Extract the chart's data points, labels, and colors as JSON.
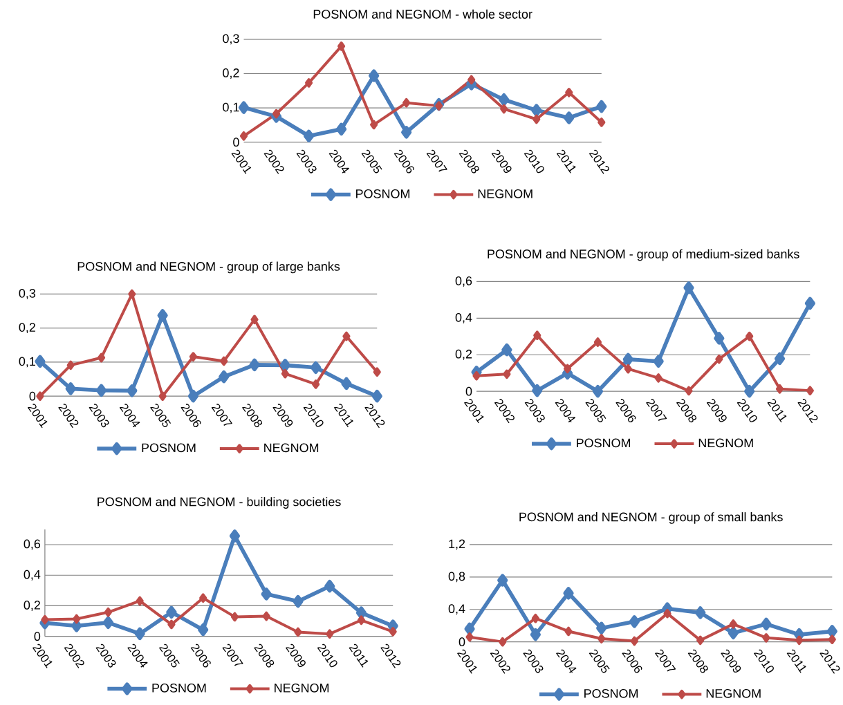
{
  "chart_data": [
    {
      "type": "line",
      "title": "POSNOM and NEGNOM - whole sector",
      "categories": [
        "2001",
        "2002",
        "2003",
        "2004",
        "2005",
        "2006",
        "2007",
        "2008",
        "2009",
        "2010",
        "2011",
        "2012"
      ],
      "ylim": [
        0,
        0.3
      ],
      "yticks": [
        0,
        {
          "value": 0.1,
          "label": "0,1"
        },
        {
          "value": 0.2,
          "label": "0,2"
        },
        {
          "value": 0.3,
          "label": "0,3"
        }
      ],
      "grid": "y",
      "legend": "bottom",
      "marker": "diamond",
      "series": [
        {
          "name": "POSNOM",
          "color": "#4a7ebb",
          "values": [
            0.101,
            0.075,
            0.018,
            0.038,
            0.194,
            0.029,
            0.11,
            0.17,
            0.124,
            0.093,
            0.071,
            0.104
          ]
        },
        {
          "name": "NEGNOM",
          "color": "#be4b48",
          "values": [
            0.018,
            0.083,
            0.173,
            0.28,
            0.051,
            0.115,
            0.106,
            0.182,
            0.097,
            0.067,
            0.145,
            0.058
          ]
        }
      ]
    },
    {
      "type": "line",
      "title": "POSNOM and NEGNOM - group of large banks",
      "categories": [
        "2001",
        "2002",
        "2003",
        "2004",
        "2005",
        "2006",
        "2007",
        "2008",
        "2009",
        "2010",
        "2011",
        "2012"
      ],
      "ylim": [
        0,
        0.3
      ],
      "yticks": [
        0,
        {
          "value": 0.1,
          "label": "0,1"
        },
        {
          "value": 0.2,
          "label": "0,2"
        },
        {
          "value": 0.3,
          "label": "0,3"
        }
      ],
      "grid": "y",
      "legend": "bottom",
      "marker": "diamond",
      "series": [
        {
          "name": "POSNOM",
          "color": "#4a7ebb",
          "values": [
            0.102,
            0.022,
            0.017,
            0.016,
            0.237,
            0,
            0.057,
            0.092,
            0.091,
            0.084,
            0.037,
            0
          ]
        },
        {
          "name": "NEGNOM",
          "color": "#be4b48",
          "values": [
            0,
            0.091,
            0.113,
            0.3,
            0,
            0.116,
            0.103,
            0.225,
            0.066,
            0.035,
            0.176,
            0.071
          ]
        }
      ]
    },
    {
      "type": "line",
      "title": "POSNOM and NEGNOM - group of medium-sized banks",
      "categories": [
        "2001",
        "2002",
        "2003",
        "2004",
        "2005",
        "2006",
        "2007",
        "2008",
        "2009",
        "2010",
        "2011",
        "2012"
      ],
      "ylim": [
        0,
        0.6
      ],
      "yticks": [
        0,
        {
          "value": 0.2,
          "label": "0,2"
        },
        {
          "value": 0.4,
          "label": "0,4"
        },
        {
          "value": 0.6,
          "label": "0,6"
        }
      ],
      "grid": "y",
      "legend": "bottom",
      "marker": "diamond",
      "series": [
        {
          "name": "POSNOM",
          "color": "#4a7ebb",
          "values": [
            0.105,
            0.227,
            0.004,
            0.099,
            0,
            0.175,
            0.164,
            0.566,
            0.29,
            0,
            0.179,
            0.481
          ]
        },
        {
          "name": "NEGNOM",
          "color": "#be4b48",
          "values": [
            0.085,
            0.094,
            0.306,
            0.124,
            0.269,
            0.123,
            0.073,
            0.003,
            0.176,
            0.301,
            0.013,
            0.004
          ]
        }
      ]
    },
    {
      "type": "line",
      "title": "POSNOM and NEGNOM - building societies",
      "categories": [
        "2001",
        "2002",
        "2003",
        "2004",
        "2005",
        "2006",
        "2007",
        "2008",
        "2009",
        "2010",
        "2011",
        "2012"
      ],
      "ylim": [
        0,
        0.7
      ],
      "yticks": [
        0,
        {
          "value": 0.2,
          "label": "0,2"
        },
        {
          "value": 0.4,
          "label": "0,4"
        },
        {
          "value": 0.6,
          "label": "0,6"
        }
      ],
      "grid": "y",
      "legend": "bottom",
      "marker": "diamond",
      "series": [
        {
          "name": "POSNOM",
          "color": "#4a7ebb",
          "values": [
            0.088,
            0.069,
            0.09,
            0.017,
            0.158,
            0.043,
            0.657,
            0.277,
            0.229,
            0.328,
            0.154,
            0.068
          ]
        },
        {
          "name": "NEGNOM",
          "color": "#be4b48",
          "values": [
            0.109,
            0.114,
            0.158,
            0.232,
            0.078,
            0.251,
            0.128,
            0.132,
            0.028,
            0.016,
            0.106,
            0.031
          ]
        }
      ]
    },
    {
      "type": "line",
      "title": "POSNOM and NEGNOM - group of small banks",
      "categories": [
        "2001",
        "2002",
        "2003",
        "2004",
        "2005",
        "2006",
        "2007",
        "2008",
        "2009",
        "2010",
        "2011",
        "2012"
      ],
      "ylim": [
        0,
        1.2
      ],
      "yticks": [
        0,
        {
          "value": 0.4,
          "label": "0,4"
        },
        {
          "value": 0.8,
          "label": "0,8"
        },
        {
          "value": 1.2,
          "label": "1,2"
        }
      ],
      "grid": "y",
      "legend": "bottom",
      "marker": "diamond",
      "series": [
        {
          "name": "POSNOM",
          "color": "#4a7ebb",
          "values": [
            0.16,
            0.76,
            0.09,
            0.6,
            0.17,
            0.25,
            0.41,
            0.36,
            0.11,
            0.22,
            0.09,
            0.13
          ]
        },
        {
          "name": "NEGNOM",
          "color": "#be4b48",
          "values": [
            0.06,
            0,
            0.29,
            0.13,
            0.04,
            0.01,
            0.35,
            0.02,
            0.22,
            0.05,
            0.02,
            0.03
          ]
        }
      ]
    }
  ]
}
